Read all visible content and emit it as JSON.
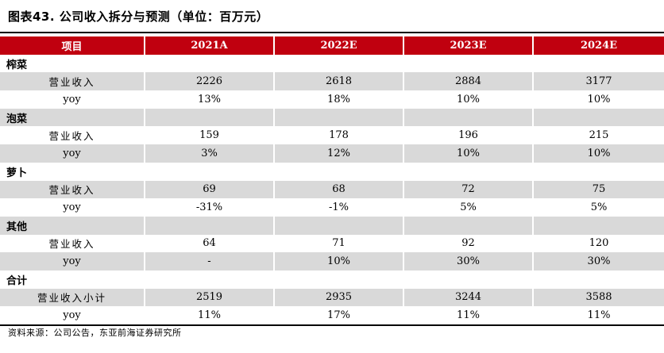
{
  "title": "图表43. 公司收入拆分与预测（单位：百万元）",
  "headers": [
    "项目",
    "2021A",
    "2022E",
    "2023E",
    "2024E"
  ],
  "sections": [
    {
      "name": "榨菜",
      "rows": [
        {
          "label": "营业收入",
          "values": [
            "2226",
            "2618",
            "2884",
            "3177"
          ]
        },
        {
          "label": "yoy",
          "values": [
            "13%",
            "18%",
            "10%",
            "10%"
          ]
        }
      ]
    },
    {
      "name": "泡菜",
      "rows": [
        {
          "label": "营业收入",
          "values": [
            "159",
            "178",
            "196",
            "215"
          ]
        },
        {
          "label": "yoy",
          "values": [
            "3%",
            "12%",
            "10%",
            "10%"
          ]
        }
      ]
    },
    {
      "name": "萝卜",
      "rows": [
        {
          "label": "营业收入",
          "values": [
            "69",
            "68",
            "72",
            "75"
          ]
        },
        {
          "label": "yoy",
          "values": [
            "-31%",
            "-1%",
            "5%",
            "5%"
          ]
        }
      ]
    },
    {
      "name": "其他",
      "rows": [
        {
          "label": "营业收入",
          "values": [
            "64",
            "71",
            "92",
            "120"
          ]
        },
        {
          "label": "yoy",
          "values": [
            "-",
            "10%",
            "30%",
            "30%"
          ]
        }
      ]
    },
    {
      "name": "合计",
      "rows": [
        {
          "label": "营业收入小计",
          "values": [
            "2519",
            "2935",
            "3244",
            "3588"
          ]
        },
        {
          "label": "yoy",
          "values": [
            "11%",
            "17%",
            "11%",
            "11%"
          ]
        }
      ]
    }
  ],
  "source": "资料来源：公司公告，东亚前海证券研究所",
  "colors": {
    "header_bg": "#c0000f",
    "shade": "#d9d9d9"
  }
}
